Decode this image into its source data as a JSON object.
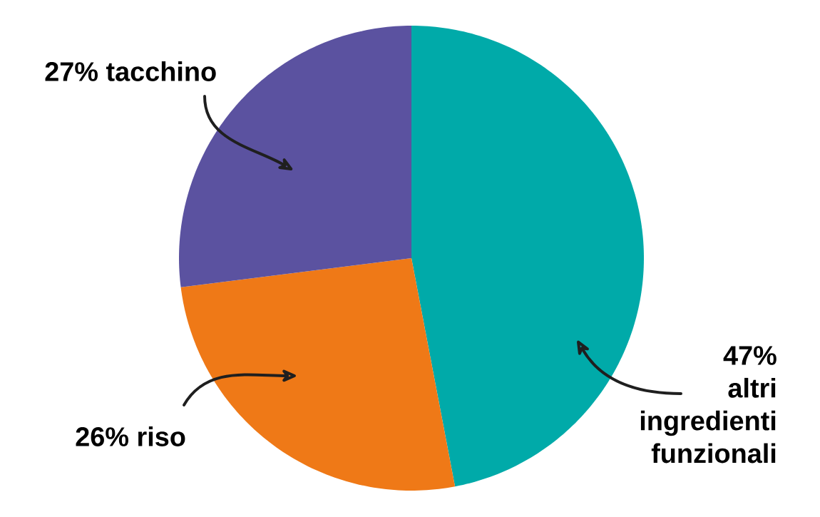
{
  "chart_data": {
    "type": "pie",
    "categories": [
      "altri ingredienti funzionali",
      "riso",
      "tacchino"
    ],
    "values": [
      47,
      26,
      27
    ],
    "value_labels": [
      "47%",
      "26%",
      "27%"
    ],
    "colors": [
      "#00aaa9",
      "#ef7917",
      "#5b52a0"
    ]
  }
}
